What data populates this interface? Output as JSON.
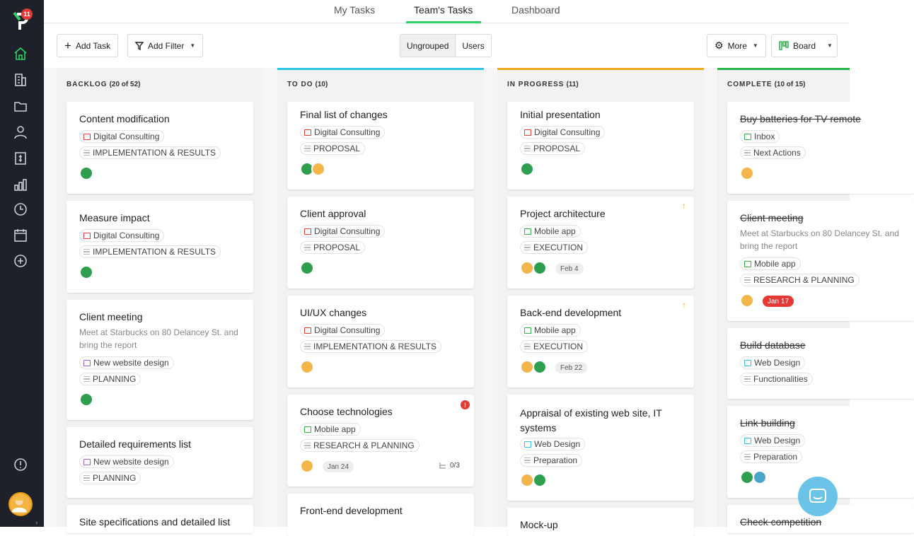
{
  "sidebar": {
    "logo_badge": "11",
    "icons": [
      "home-icon",
      "building-icon",
      "folder-icon",
      "user-icon",
      "invoice-icon",
      "reports-icon",
      "clock-icon",
      "calendar-icon",
      "add-circle-icon"
    ],
    "bottom_icon": "info-icon"
  },
  "tabs": [
    {
      "label": "My Tasks"
    },
    {
      "label": "Team's Tasks"
    },
    {
      "label": "Dashboard"
    }
  ],
  "toolbar": {
    "add_task": "Add Task",
    "add_filter": "Add Filter",
    "grouping": [
      "Ungrouped",
      "Users"
    ],
    "more": "More",
    "view": "Board"
  },
  "colors": {
    "todo": "#2ec4e6",
    "in_progress": "#f2a81d",
    "complete": "#2bb44a",
    "digital_consulting": "#e53935",
    "website_design": "#9c5fd6",
    "mobile_app": "#2bb44a",
    "web_design": "#2ec4e6",
    "inbox": "#2bb44a"
  },
  "columns": [
    {
      "title": "BACKLOG",
      "count": "(20 of 52)",
      "cards": [
        {
          "title": "Content modification",
          "project": "Digital Consulting",
          "stage": "IMPLEMENTATION & RESULTS"
        },
        {
          "title": "Measure impact",
          "project": "Digital Consulting",
          "stage": "IMPLEMENTATION & RESULTS"
        },
        {
          "title": "Client meeting",
          "desc": "Meet at Starbucks on 80 Delancey St. and bring the report",
          "project": "New website design",
          "stage": "PLANNING"
        },
        {
          "title": "Detailed requirements list",
          "project": "New website design",
          "stage": "PLANNING"
        },
        {
          "title": "Site specifications and detailed list"
        }
      ]
    },
    {
      "title": "TO DO",
      "count": "(10)",
      "cards": [
        {
          "title": "Final list of changes",
          "project": "Digital Consulting",
          "stage": "PROPOSAL"
        },
        {
          "title": "Client approval",
          "project": "Digital Consulting",
          "stage": "PROPOSAL"
        },
        {
          "title": "UI/UX changes",
          "project": "Digital Consulting",
          "stage": "IMPLEMENTATION & RESULTS"
        },
        {
          "title": "Choose technologies",
          "project": "Mobile app",
          "stage": "RESEARCH & PLANNING",
          "date": "Jan 24",
          "subtasks": "0/3",
          "alert": "!"
        },
        {
          "title": "Front-end development"
        }
      ]
    },
    {
      "title": "IN PROGRESS",
      "count": "(11)",
      "cards": [
        {
          "title": "Initial presentation",
          "project": "Digital Consulting",
          "stage": "PROPOSAL"
        },
        {
          "title": "Project architecture",
          "project": "Mobile app",
          "stage": "EXECUTION",
          "date": "Feb 4",
          "priority": "↑"
        },
        {
          "title": "Back-end development",
          "project": "Mobile app",
          "stage": "EXECUTION",
          "date": "Feb 22",
          "priority": "↑"
        },
        {
          "title": "Appraisal of existing web site, IT systems",
          "project": "Web Design",
          "stage": "Preparation"
        },
        {
          "title": "Mock-up"
        }
      ]
    },
    {
      "title": "COMPLETE",
      "count": "(10 of 15)",
      "cards": [
        {
          "title": "Buy batteries for TV remote",
          "project": "Inbox",
          "stage": "Next Actions"
        },
        {
          "title": "Client meeting",
          "desc": "Meet at Starbucks on 80 Delancey St. and bring the report",
          "project": "Mobile app",
          "stage": "RESEARCH & PLANNING",
          "date": "Jan 17"
        },
        {
          "title": "Build database",
          "project": "Web Design",
          "stage": "Functionalities"
        },
        {
          "title": "Link building",
          "project": "Web Design",
          "stage": "Preparation"
        },
        {
          "title": "Check competition"
        }
      ]
    }
  ]
}
